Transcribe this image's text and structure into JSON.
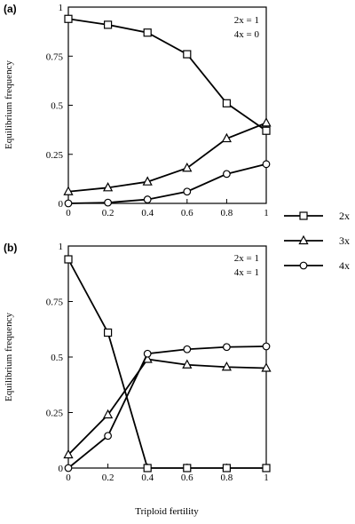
{
  "chart_data": [
    {
      "type": "line",
      "panel_label": "(a)",
      "ylabel": "Equilibrium frequency",
      "xlim": [
        0,
        1
      ],
      "ylim": [
        0,
        1
      ],
      "x_ticks": [
        "0",
        "0.2",
        "0.4",
        "0.6",
        "0.8",
        "1"
      ],
      "y_ticks": [
        "0",
        "0.25",
        "0.5",
        "0.75",
        "1"
      ],
      "annotations": [
        "2x = 1",
        "4x = 0"
      ],
      "x": [
        0,
        0.2,
        0.4,
        0.6,
        0.8,
        1
      ],
      "series": [
        {
          "name": "2x",
          "marker": "square",
          "values": [
            0.94,
            0.91,
            0.87,
            0.76,
            0.51,
            0.37
          ]
        },
        {
          "name": "3x",
          "marker": "triangle",
          "values": [
            0.06,
            0.08,
            0.11,
            0.18,
            0.33,
            0.41
          ]
        },
        {
          "name": "4x",
          "marker": "circle",
          "values": [
            0.0,
            0.004,
            0.02,
            0.06,
            0.15,
            0.2
          ]
        }
      ]
    },
    {
      "type": "line",
      "panel_label": "(b)",
      "ylabel": "Equilibrium frequency",
      "xlabel": "Triploid fertility",
      "xlim": [
        0,
        1
      ],
      "ylim": [
        0,
        1
      ],
      "x_ticks": [
        "0",
        "0.2",
        "0.4",
        "0.6",
        "0.8",
        "1"
      ],
      "y_ticks": [
        "0",
        "0.25",
        "0.5",
        "0.75",
        "1"
      ],
      "annotations": [
        "2x = 1",
        "4x = 1"
      ],
      "x": [
        0,
        0.2,
        0.4,
        0.6,
        0.8,
        1
      ],
      "series": [
        {
          "name": "2x",
          "marker": "square",
          "values": [
            0.94,
            0.61,
            0.0,
            0.0,
            0.0,
            0.0
          ]
        },
        {
          "name": "3x",
          "marker": "triangle",
          "values": [
            0.06,
            0.24,
            0.49,
            0.465,
            0.455,
            0.45
          ]
        },
        {
          "name": "4x",
          "marker": "circle",
          "values": [
            0.0,
            0.145,
            0.515,
            0.535,
            0.545,
            0.548
          ]
        }
      ]
    }
  ],
  "legend": [
    {
      "label": "2x",
      "marker": "square"
    },
    {
      "label": "3x",
      "marker": "triangle"
    },
    {
      "label": "4x",
      "marker": "circle"
    }
  ]
}
